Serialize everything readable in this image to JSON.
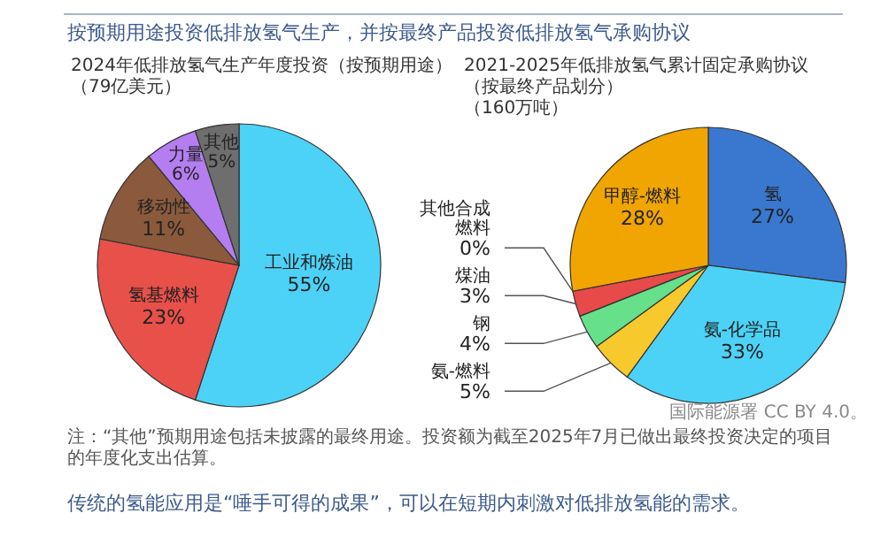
{
  "chart_data": [
    {
      "type": "pie",
      "title": "2024年低排放氢气生产年度投资（按预期用途）",
      "subtitle": "（79亿美元）",
      "categories": [
        "工业和炼油",
        "氢基燃料",
        "移动性",
        "力量",
        "其他"
      ],
      "values": [
        55,
        23,
        11,
        6,
        5
      ],
      "value_labels": [
        "55%",
        "23%",
        "11%",
        "6%",
        "5%"
      ],
      "colors": [
        "#4dd2f7",
        "#e8504a",
        "#8b5a3c",
        "#b57ef0",
        "#6e6e6e"
      ],
      "annotations": [
        "按预期用途投资低排放氢气生产，并按最终产品投资低排放氢气承购协议",
        "注：“其他”预期用途包括未披露的最终用途。投资额为截至2025年7月已做出最终投资决定的项目的年度化支出估算。",
        "传统的氢能应用是“唾手可得的成果”，可以在短期内刺激对低排放氢能的需求。"
      ]
    },
    {
      "type": "pie",
      "title": "2021-2025年低排放氢气累计固定承购协议（按最终产品划分）",
      "subtitle": "（160万吨）",
      "categories": [
        "氢",
        "氨-化学品",
        "氨-燃料",
        "钢",
        "煤油",
        "其他合成燃料",
        "甲醇-燃料"
      ],
      "values": [
        27,
        33,
        5,
        4,
        3,
        0,
        28
      ],
      "value_labels": [
        "27%",
        "33%",
        "5%",
        "4%",
        "3%",
        "0%",
        "28%"
      ],
      "colors": [
        "#3a78d0",
        "#4dd2f7",
        "#f7c92c",
        "#66e08a",
        "#e84a4a",
        "#a04040",
        "#f0a500"
      ],
      "annotations": [
        "国际能源署 CC BY 4.0。"
      ]
    }
  ]
}
